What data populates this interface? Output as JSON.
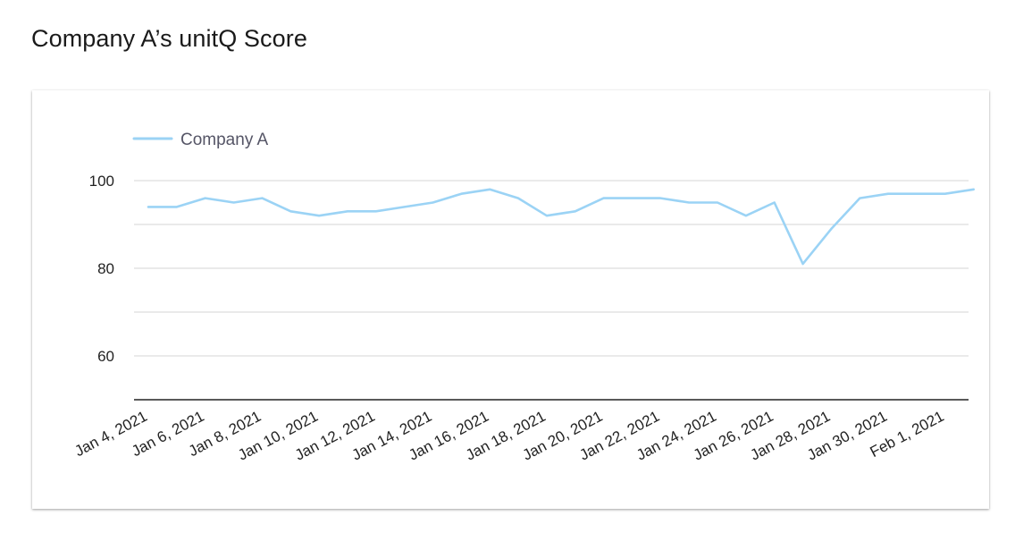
{
  "page": {
    "title": "Company A’s unitQ Score"
  },
  "chart_data": {
    "type": "line",
    "title": "Company A’s unitQ Score",
    "xlabel": "",
    "ylabel": "",
    "ylim": [
      50,
      110
    ],
    "yticks": [
      60,
      80,
      100
    ],
    "grid": true,
    "legend_position": "top-left",
    "x_tick_labels": [
      "Jan 4, 2021",
      "Jan 6, 2021",
      "Jan 8, 2021",
      "Jan 10, 2021",
      "Jan 12, 2021",
      "Jan 14, 2021",
      "Jan 16, 2021",
      "Jan 18, 2021",
      "Jan 20, 2021",
      "Jan 22, 2021",
      "Jan 24, 2021",
      "Jan 26, 2021",
      "Jan 28, 2021",
      "Jan 30, 2021",
      "Feb 1, 2021"
    ],
    "x": [
      "Jan 4, 2021",
      "Jan 5, 2021",
      "Jan 6, 2021",
      "Jan 7, 2021",
      "Jan 8, 2021",
      "Jan 9, 2021",
      "Jan 10, 2021",
      "Jan 11, 2021",
      "Jan 12, 2021",
      "Jan 13, 2021",
      "Jan 14, 2021",
      "Jan 15, 2021",
      "Jan 16, 2021",
      "Jan 17, 2021",
      "Jan 18, 2021",
      "Jan 19, 2021",
      "Jan 20, 2021",
      "Jan 21, 2021",
      "Jan 22, 2021",
      "Jan 23, 2021",
      "Jan 24, 2021",
      "Jan 25, 2021",
      "Jan 26, 2021",
      "Jan 27, 2021",
      "Jan 28, 2021",
      "Jan 29, 2021",
      "Jan 30, 2021",
      "Jan 31, 2021",
      "Feb 1, 2021",
      "Feb 2, 2021"
    ],
    "series": [
      {
        "name": "Company A",
        "color": "#9bd3f5",
        "values": [
          94,
          94,
          96,
          95,
          96,
          93,
          92,
          93,
          93,
          94,
          95,
          97,
          98,
          96,
          92,
          93,
          96,
          96,
          96,
          95,
          95,
          92,
          95,
          81,
          89,
          96,
          97,
          97,
          97,
          98
        ]
      }
    ]
  }
}
